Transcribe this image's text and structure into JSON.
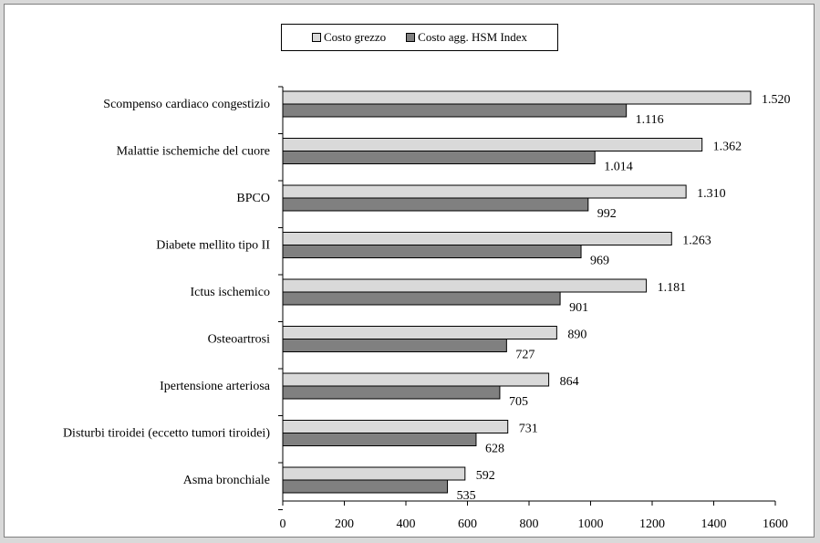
{
  "chart_data": {
    "type": "bar",
    "orientation": "horizontal",
    "categories": [
      "Scompenso cardiaco congestizio",
      "Malattie ischemiche del cuore",
      "BPCO",
      "Diabete mellito tipo II",
      "Ictus ischemico",
      "Osteoartrosi",
      "Ipertensione arteriosa",
      "Disturbi tiroidei (eccetto tumori tiroidei)",
      "Asma bronchiale"
    ],
    "series": [
      {
        "name": "Costo grezzo",
        "color": "#d9d9d9",
        "values": [
          1520,
          1362,
          1310,
          1263,
          1181,
          890,
          864,
          731,
          592
        ],
        "labels": [
          "1.520",
          "1.362",
          "1.310",
          "1.263",
          "1.181",
          "890",
          "864",
          "731",
          "592"
        ]
      },
      {
        "name": "Costo agg. HSM Index",
        "color": "#808080",
        "values": [
          1116,
          1014,
          992,
          969,
          901,
          727,
          705,
          628,
          535
        ],
        "labels": [
          "1.116",
          "1.014",
          "992",
          "969",
          "901",
          "727",
          "705",
          "628",
          "535"
        ]
      }
    ],
    "xlim": [
      0,
      1600
    ],
    "xticks": [
      0,
      200,
      400,
      600,
      800,
      1000,
      1200,
      1400,
      1600
    ],
    "grid": false,
    "legend_position": "top"
  }
}
